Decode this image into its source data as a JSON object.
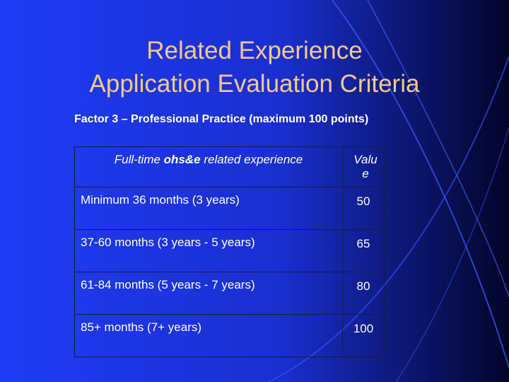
{
  "title": [
    "Related Experience",
    "Application Evaluation Criteria"
  ],
  "subtitle": "Factor 3 – Professional Practice (maximum 100 points)",
  "table": {
    "header": [
      [
        "Full-time ",
        "ohs&e",
        " related experience"
      ],
      "Value"
    ],
    "rows": [
      [
        "Minimum 36 months (3 years)",
        50
      ],
      [
        "37-60 months (3 years - 5 years)",
        65
      ],
      [
        "61-84 months (5 years - 7 years)",
        80
      ],
      [
        "85+ months (7+ years)",
        100
      ]
    ]
  }
}
